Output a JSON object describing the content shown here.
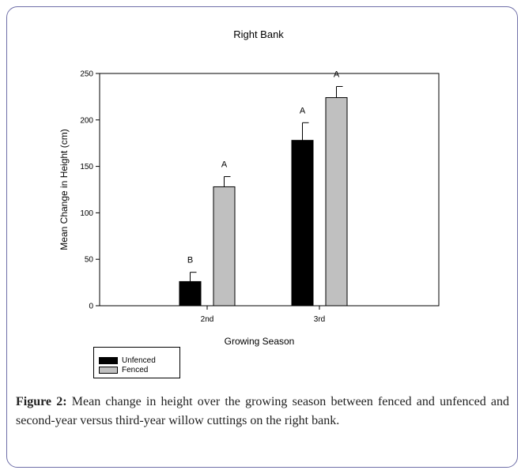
{
  "figure": {
    "caption_label": "Figure 2:",
    "caption_text": "Mean change in height over the growing season between fenced and unfenced and second-year versus third-year willow cuttings on the right bank."
  },
  "chart_data": {
    "type": "bar",
    "title": "Right Bank",
    "xlabel": "Growing Season",
    "ylabel": "Mean Change in Height (cm)",
    "categories": [
      "2nd",
      "3rd"
    ],
    "ylim": [
      0,
      250
    ],
    "yticks": [
      0,
      50,
      100,
      150,
      200,
      250
    ],
    "series": [
      {
        "name": "Unfenced",
        "values": [
          26,
          178
        ],
        "errors": [
          10,
          19
        ],
        "letters": [
          "B",
          "A"
        ],
        "color": "#000000"
      },
      {
        "name": "Fenced",
        "values": [
          128,
          224
        ],
        "errors": [
          11,
          12
        ],
        "letters": [
          "A",
          "A"
        ],
        "color": "#c0c0c0"
      }
    ],
    "grid": false,
    "legend_position": "bottom-left"
  }
}
